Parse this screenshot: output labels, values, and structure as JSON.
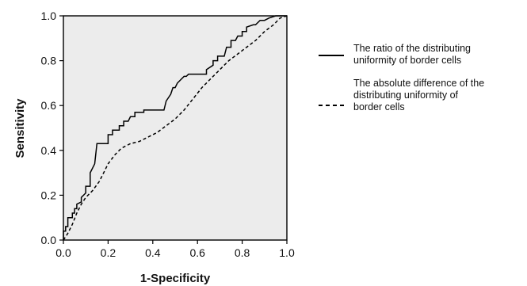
{
  "chart_data": {
    "type": "line",
    "title": "",
    "xlabel": "1-Specificity",
    "ylabel": "Sensitivity",
    "xlim": [
      0,
      1
    ],
    "ylim": [
      0,
      1
    ],
    "x_ticks": [
      "0.0",
      "0.2",
      "0.4",
      "0.6",
      "0.8",
      "1.0"
    ],
    "y_ticks": [
      "0.0",
      "0.2",
      "0.4",
      "0.6",
      "0.8",
      "1.0"
    ],
    "grid": false,
    "plot_background": "#ececec",
    "legend_position": "right",
    "series": [
      {
        "name": "The ratio of the distributing uniformity of border cells",
        "legend_lines": [
          "The ratio of the distributing",
          "uniformity of border cells"
        ],
        "style": "solid",
        "color": "#000000",
        "x": [
          0.0,
          0.0,
          0.01,
          0.01,
          0.02,
          0.02,
          0.04,
          0.04,
          0.05,
          0.05,
          0.06,
          0.06,
          0.08,
          0.08,
          0.1,
          0.1,
          0.12,
          0.12,
          0.14,
          0.15,
          0.16,
          0.16,
          0.2,
          0.2,
          0.22,
          0.22,
          0.25,
          0.25,
          0.27,
          0.27,
          0.29,
          0.3,
          0.32,
          0.32,
          0.34,
          0.35,
          0.36,
          0.36,
          0.45,
          0.46,
          0.48,
          0.49,
          0.5,
          0.51,
          0.54,
          0.55,
          0.56,
          0.56,
          0.64,
          0.64,
          0.67,
          0.67,
          0.69,
          0.69,
          0.72,
          0.73,
          0.75,
          0.75,
          0.77,
          0.78,
          0.8,
          0.8,
          0.82,
          0.82,
          0.85,
          0.86,
          0.88,
          0.9,
          0.92,
          0.95,
          1.0
        ],
        "y": [
          0.0,
          0.04,
          0.04,
          0.06,
          0.06,
          0.1,
          0.1,
          0.12,
          0.12,
          0.14,
          0.14,
          0.16,
          0.17,
          0.19,
          0.21,
          0.24,
          0.24,
          0.3,
          0.34,
          0.43,
          0.43,
          0.43,
          0.43,
          0.47,
          0.47,
          0.49,
          0.49,
          0.51,
          0.51,
          0.53,
          0.53,
          0.55,
          0.55,
          0.57,
          0.57,
          0.57,
          0.57,
          0.58,
          0.58,
          0.62,
          0.65,
          0.68,
          0.68,
          0.7,
          0.73,
          0.73,
          0.74,
          0.74,
          0.74,
          0.76,
          0.78,
          0.8,
          0.8,
          0.82,
          0.82,
          0.86,
          0.86,
          0.89,
          0.89,
          0.91,
          0.91,
          0.93,
          0.93,
          0.95,
          0.96,
          0.96,
          0.98,
          0.98,
          0.99,
          1.0,
          1.0
        ]
      },
      {
        "name": "The absolute difference of the distributing uniformity of border cells",
        "legend_lines": [
          "The absolute difference of the",
          "distributing uniformity of",
          "border cells"
        ],
        "style": "dashed",
        "color": "#000000",
        "x": [
          0.0,
          0.02,
          0.04,
          0.06,
          0.08,
          0.1,
          0.13,
          0.16,
          0.18,
          0.2,
          0.23,
          0.26,
          0.3,
          0.34,
          0.38,
          0.42,
          0.46,
          0.5,
          0.54,
          0.58,
          0.62,
          0.66,
          0.7,
          0.74,
          0.78,
          0.82,
          0.86,
          0.9,
          0.94,
          0.97,
          1.0
        ],
        "y": [
          0.0,
          0.03,
          0.07,
          0.12,
          0.16,
          0.19,
          0.22,
          0.26,
          0.3,
          0.34,
          0.38,
          0.41,
          0.43,
          0.44,
          0.46,
          0.48,
          0.51,
          0.54,
          0.58,
          0.63,
          0.68,
          0.72,
          0.76,
          0.8,
          0.83,
          0.86,
          0.89,
          0.93,
          0.96,
          0.99,
          1.0
        ]
      }
    ]
  }
}
